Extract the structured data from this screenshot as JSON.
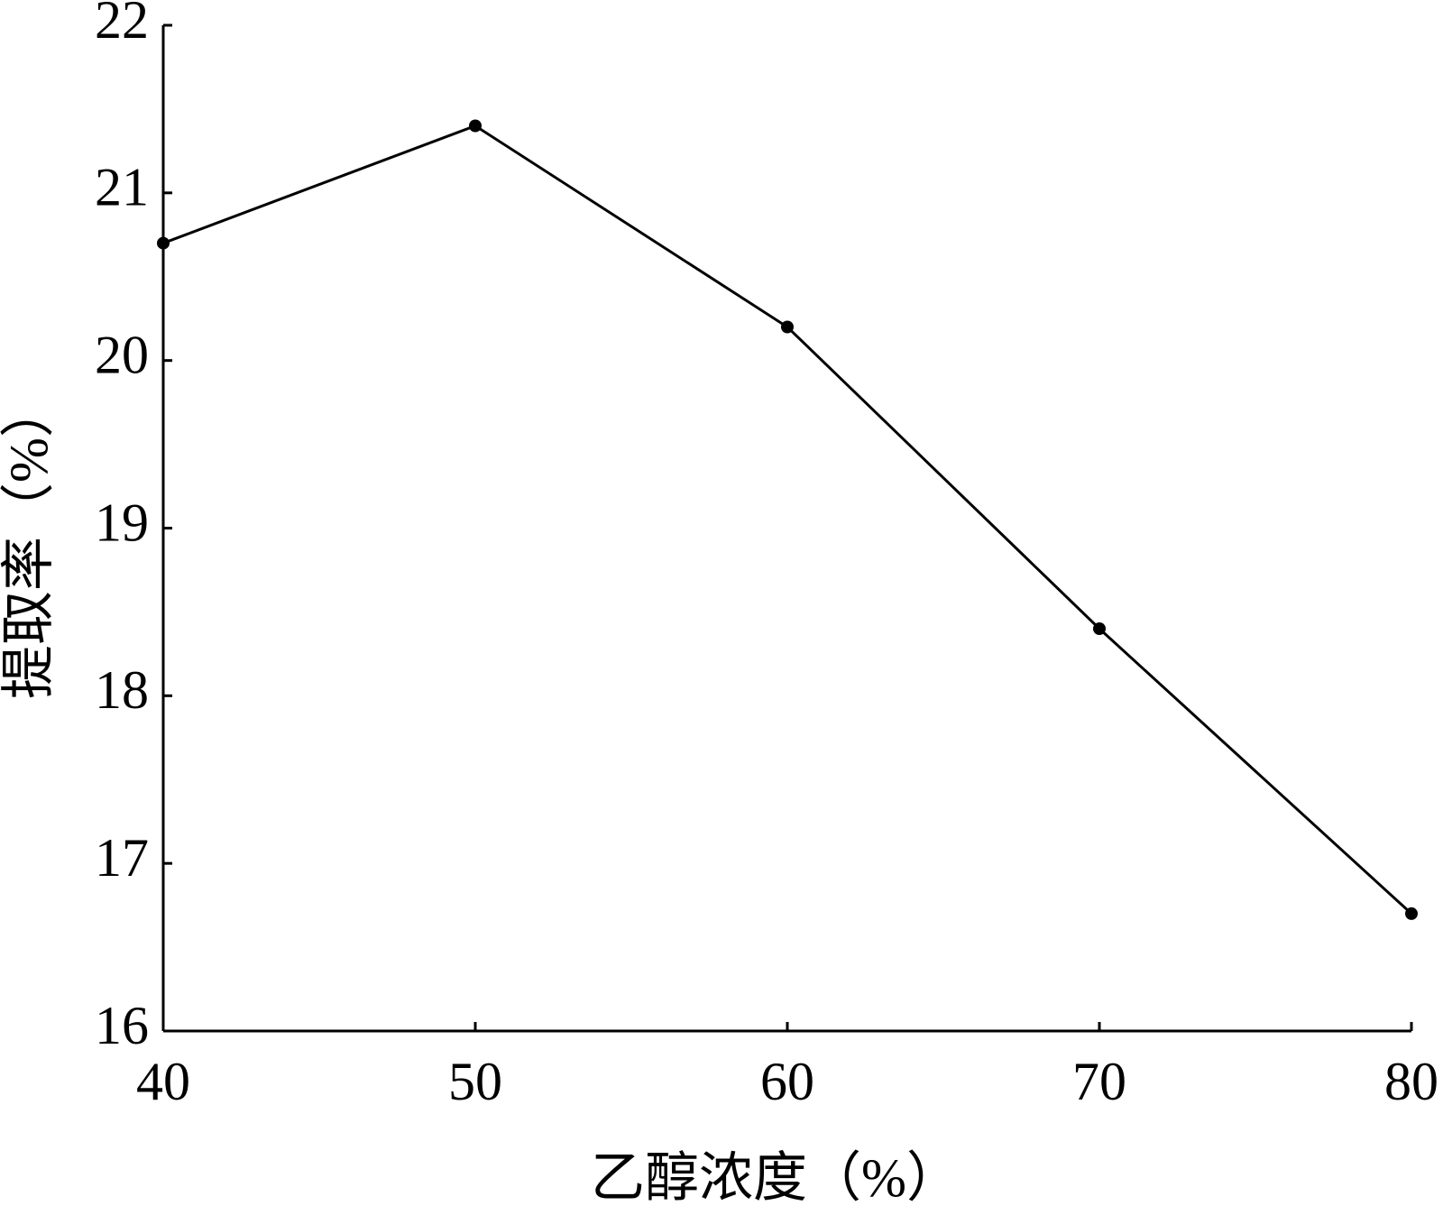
{
  "chart_data": {
    "type": "line",
    "x_label": "乙醇浓度（%）",
    "y_label": "提取率（%）",
    "x": [
      40,
      50,
      60,
      70,
      80
    ],
    "series": [
      {
        "name": null,
        "color": "#000000",
        "values": [
          20.7,
          21.4,
          20.2,
          18.4,
          16.7
        ]
      }
    ],
    "xlim": [
      40,
      80
    ],
    "xticks": [
      40,
      50,
      60,
      70,
      80
    ],
    "ylim": [
      16,
      22
    ],
    "yticks": [
      16,
      17,
      18,
      19,
      20,
      21,
      22
    ],
    "grid": false
  }
}
